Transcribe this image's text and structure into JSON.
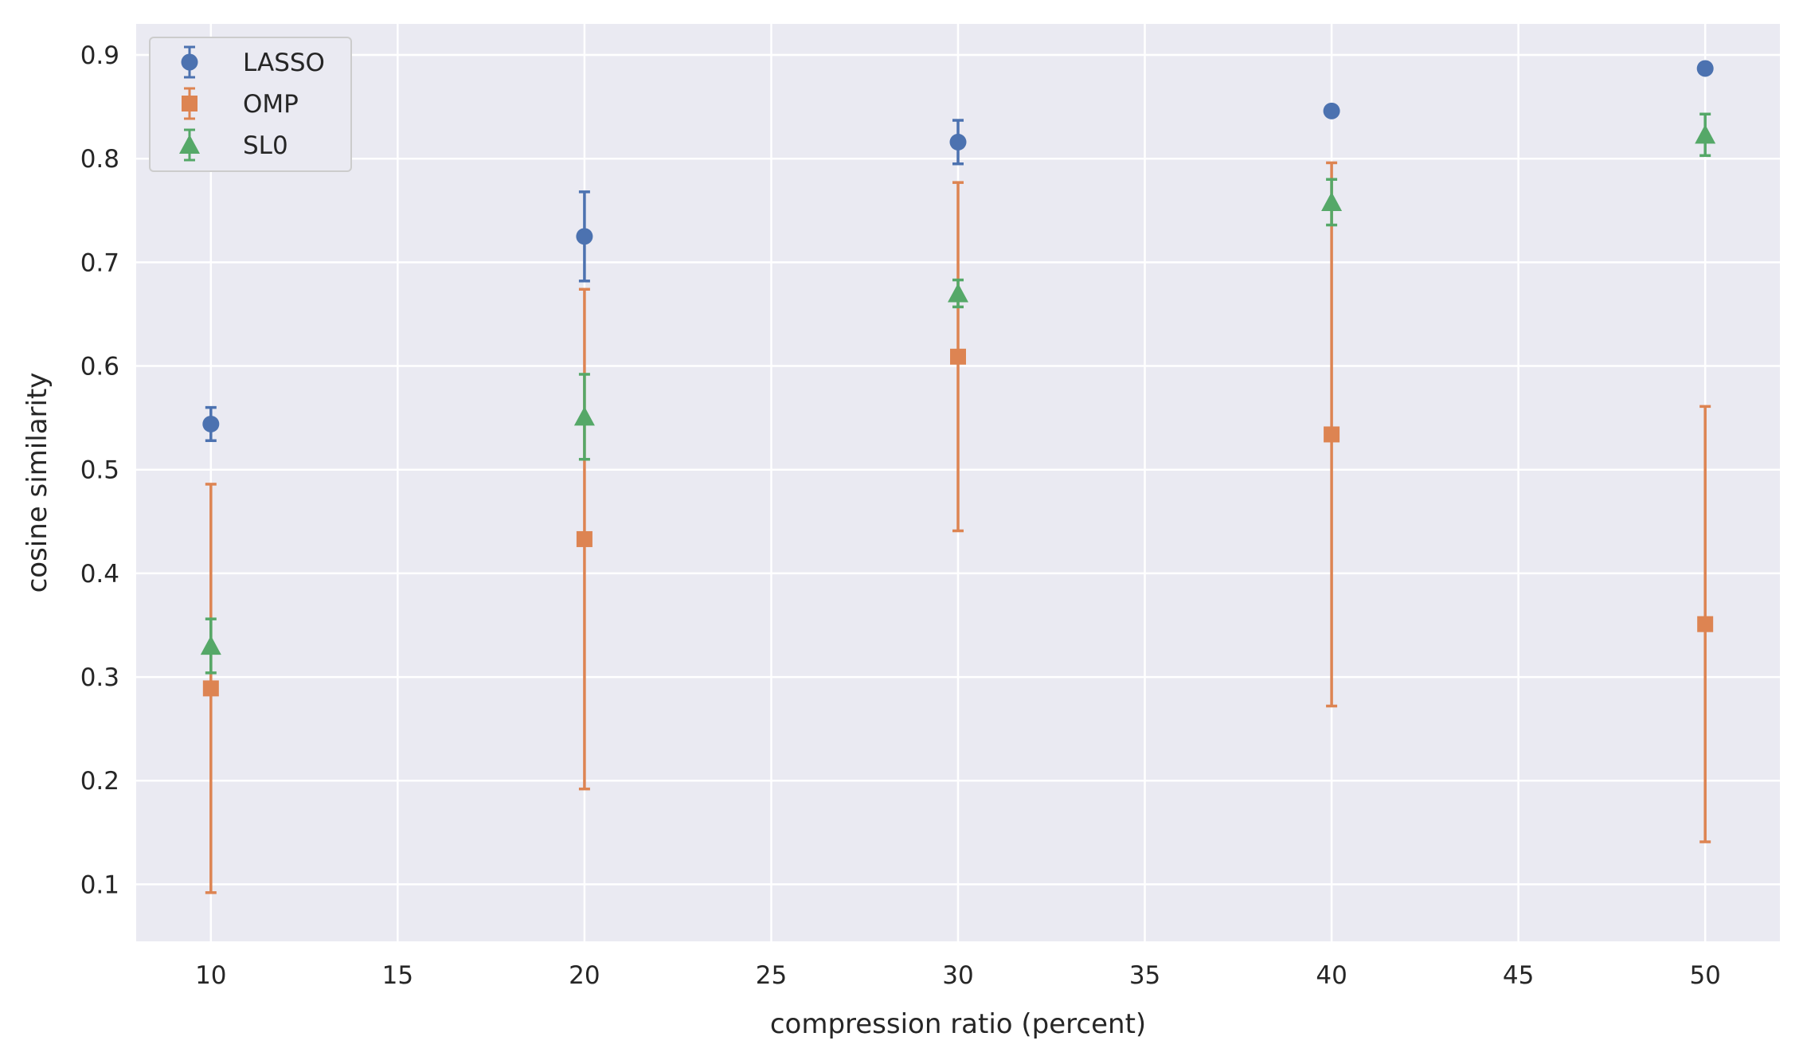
{
  "chart_data": {
    "type": "scatter",
    "title": "",
    "xlabel": "compression ratio (percent)",
    "ylabel": "cosine similarity",
    "xlim": [
      8.0,
      52.0
    ],
    "ylim": [
      0.045,
      0.93
    ],
    "xticks": [
      10,
      15,
      20,
      25,
      30,
      35,
      40,
      45,
      50
    ],
    "yticks": [
      0.1,
      0.2,
      0.3,
      0.4,
      0.5,
      0.6,
      0.7,
      0.8,
      0.9
    ],
    "grid": true,
    "legend_position": "top-left",
    "x": [
      10,
      20,
      30,
      40,
      50
    ],
    "series": [
      {
        "name": "LASSO",
        "marker": "circle",
        "color": "#4c72b0",
        "values": [
          0.544,
          0.725,
          0.816,
          0.846,
          0.887
        ],
        "errors": [
          0.016,
          0.043,
          0.021,
          0.002,
          0.001
        ]
      },
      {
        "name": "OMP",
        "marker": "square",
        "color": "#dd8452",
        "values": [
          0.289,
          0.433,
          0.609,
          0.534,
          0.351
        ],
        "errors": [
          0.197,
          0.241,
          0.168,
          0.262,
          0.21
        ]
      },
      {
        "name": "SL0",
        "marker": "triangle",
        "color": "#55a868",
        "values": [
          0.33,
          0.551,
          0.67,
          0.758,
          0.823
        ],
        "errors": [
          0.026,
          0.041,
          0.013,
          0.022,
          0.02
        ]
      }
    ]
  }
}
